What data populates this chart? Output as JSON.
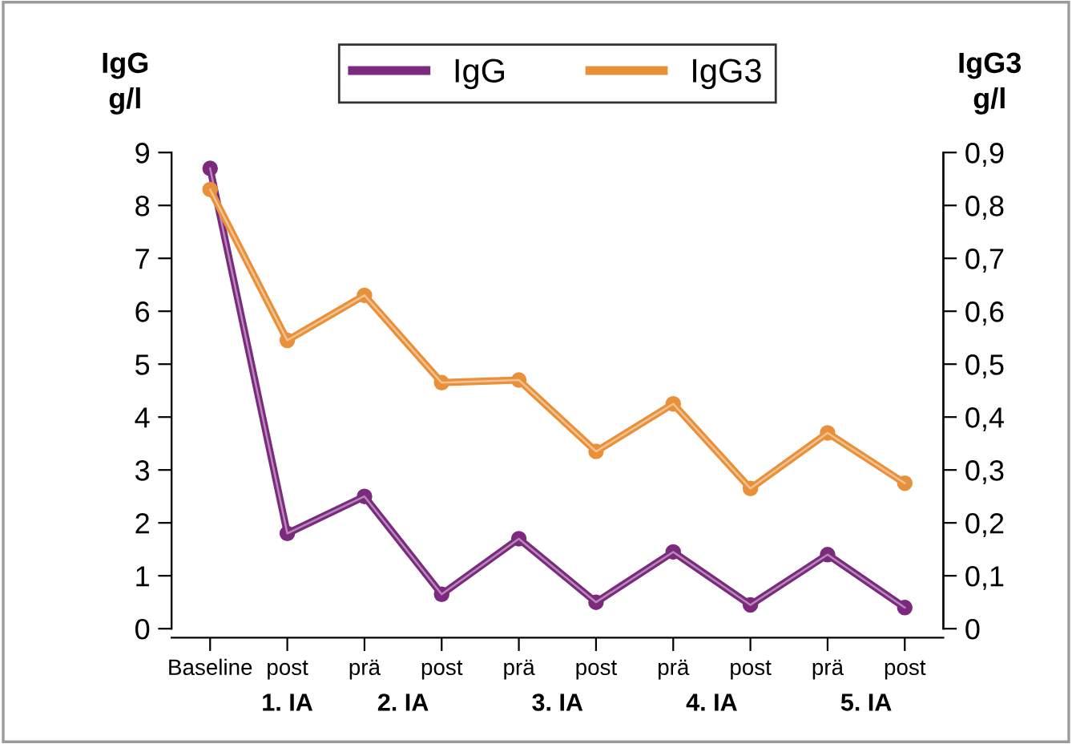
{
  "chart_data": {
    "type": "line",
    "ylabel": "IgG\ng/l",
    "y2label": "IgG3\ng/l",
    "categories": [
      "Baseline",
      "post",
      "prä",
      "post",
      "prä",
      "post",
      "prä",
      "post",
      "prä",
      "post"
    ],
    "annotations": [
      "1. IA",
      "2. IA",
      "3. IA",
      "4. IA",
      "5. IA"
    ],
    "series": [
      {
        "name": "IgG",
        "color": "#7b2a7e",
        "values": [
          8.7,
          1.8,
          2.5,
          0.65,
          1.7,
          0.5,
          1.45,
          0.45,
          1.4,
          0.4
        ]
      },
      {
        "name": "IgG3",
        "color": "#e8913a",
        "axis": "y2",
        "values": [
          0.83,
          0.545,
          0.63,
          0.465,
          0.47,
          0.335,
          0.425,
          0.265,
          0.37,
          0.275
        ]
      }
    ],
    "ylim": [
      0,
      9
    ],
    "yticks": [
      0,
      1,
      2,
      3,
      4,
      5,
      6,
      7,
      8,
      9
    ],
    "y2lim": [
      0,
      0.9
    ],
    "y2ticks": [
      {
        "value": 0,
        "label": "0"
      },
      {
        "value": 0.1,
        "label": "0,1"
      },
      {
        "value": 0.2,
        "label": "0,2"
      },
      {
        "value": 0.3,
        "label": "0,3"
      },
      {
        "value": 0.4,
        "label": "0,4"
      },
      {
        "value": 0.5,
        "label": "0,5"
      },
      {
        "value": 0.6,
        "label": "0,6"
      },
      {
        "value": 0.7,
        "label": "0,7"
      },
      {
        "value": 0.8,
        "label": "0,8"
      },
      {
        "value": 0.9,
        "label": "0,9"
      }
    ],
    "legend": "top",
    "grid": false,
    "marker": "circle",
    "line_style": "solid"
  }
}
